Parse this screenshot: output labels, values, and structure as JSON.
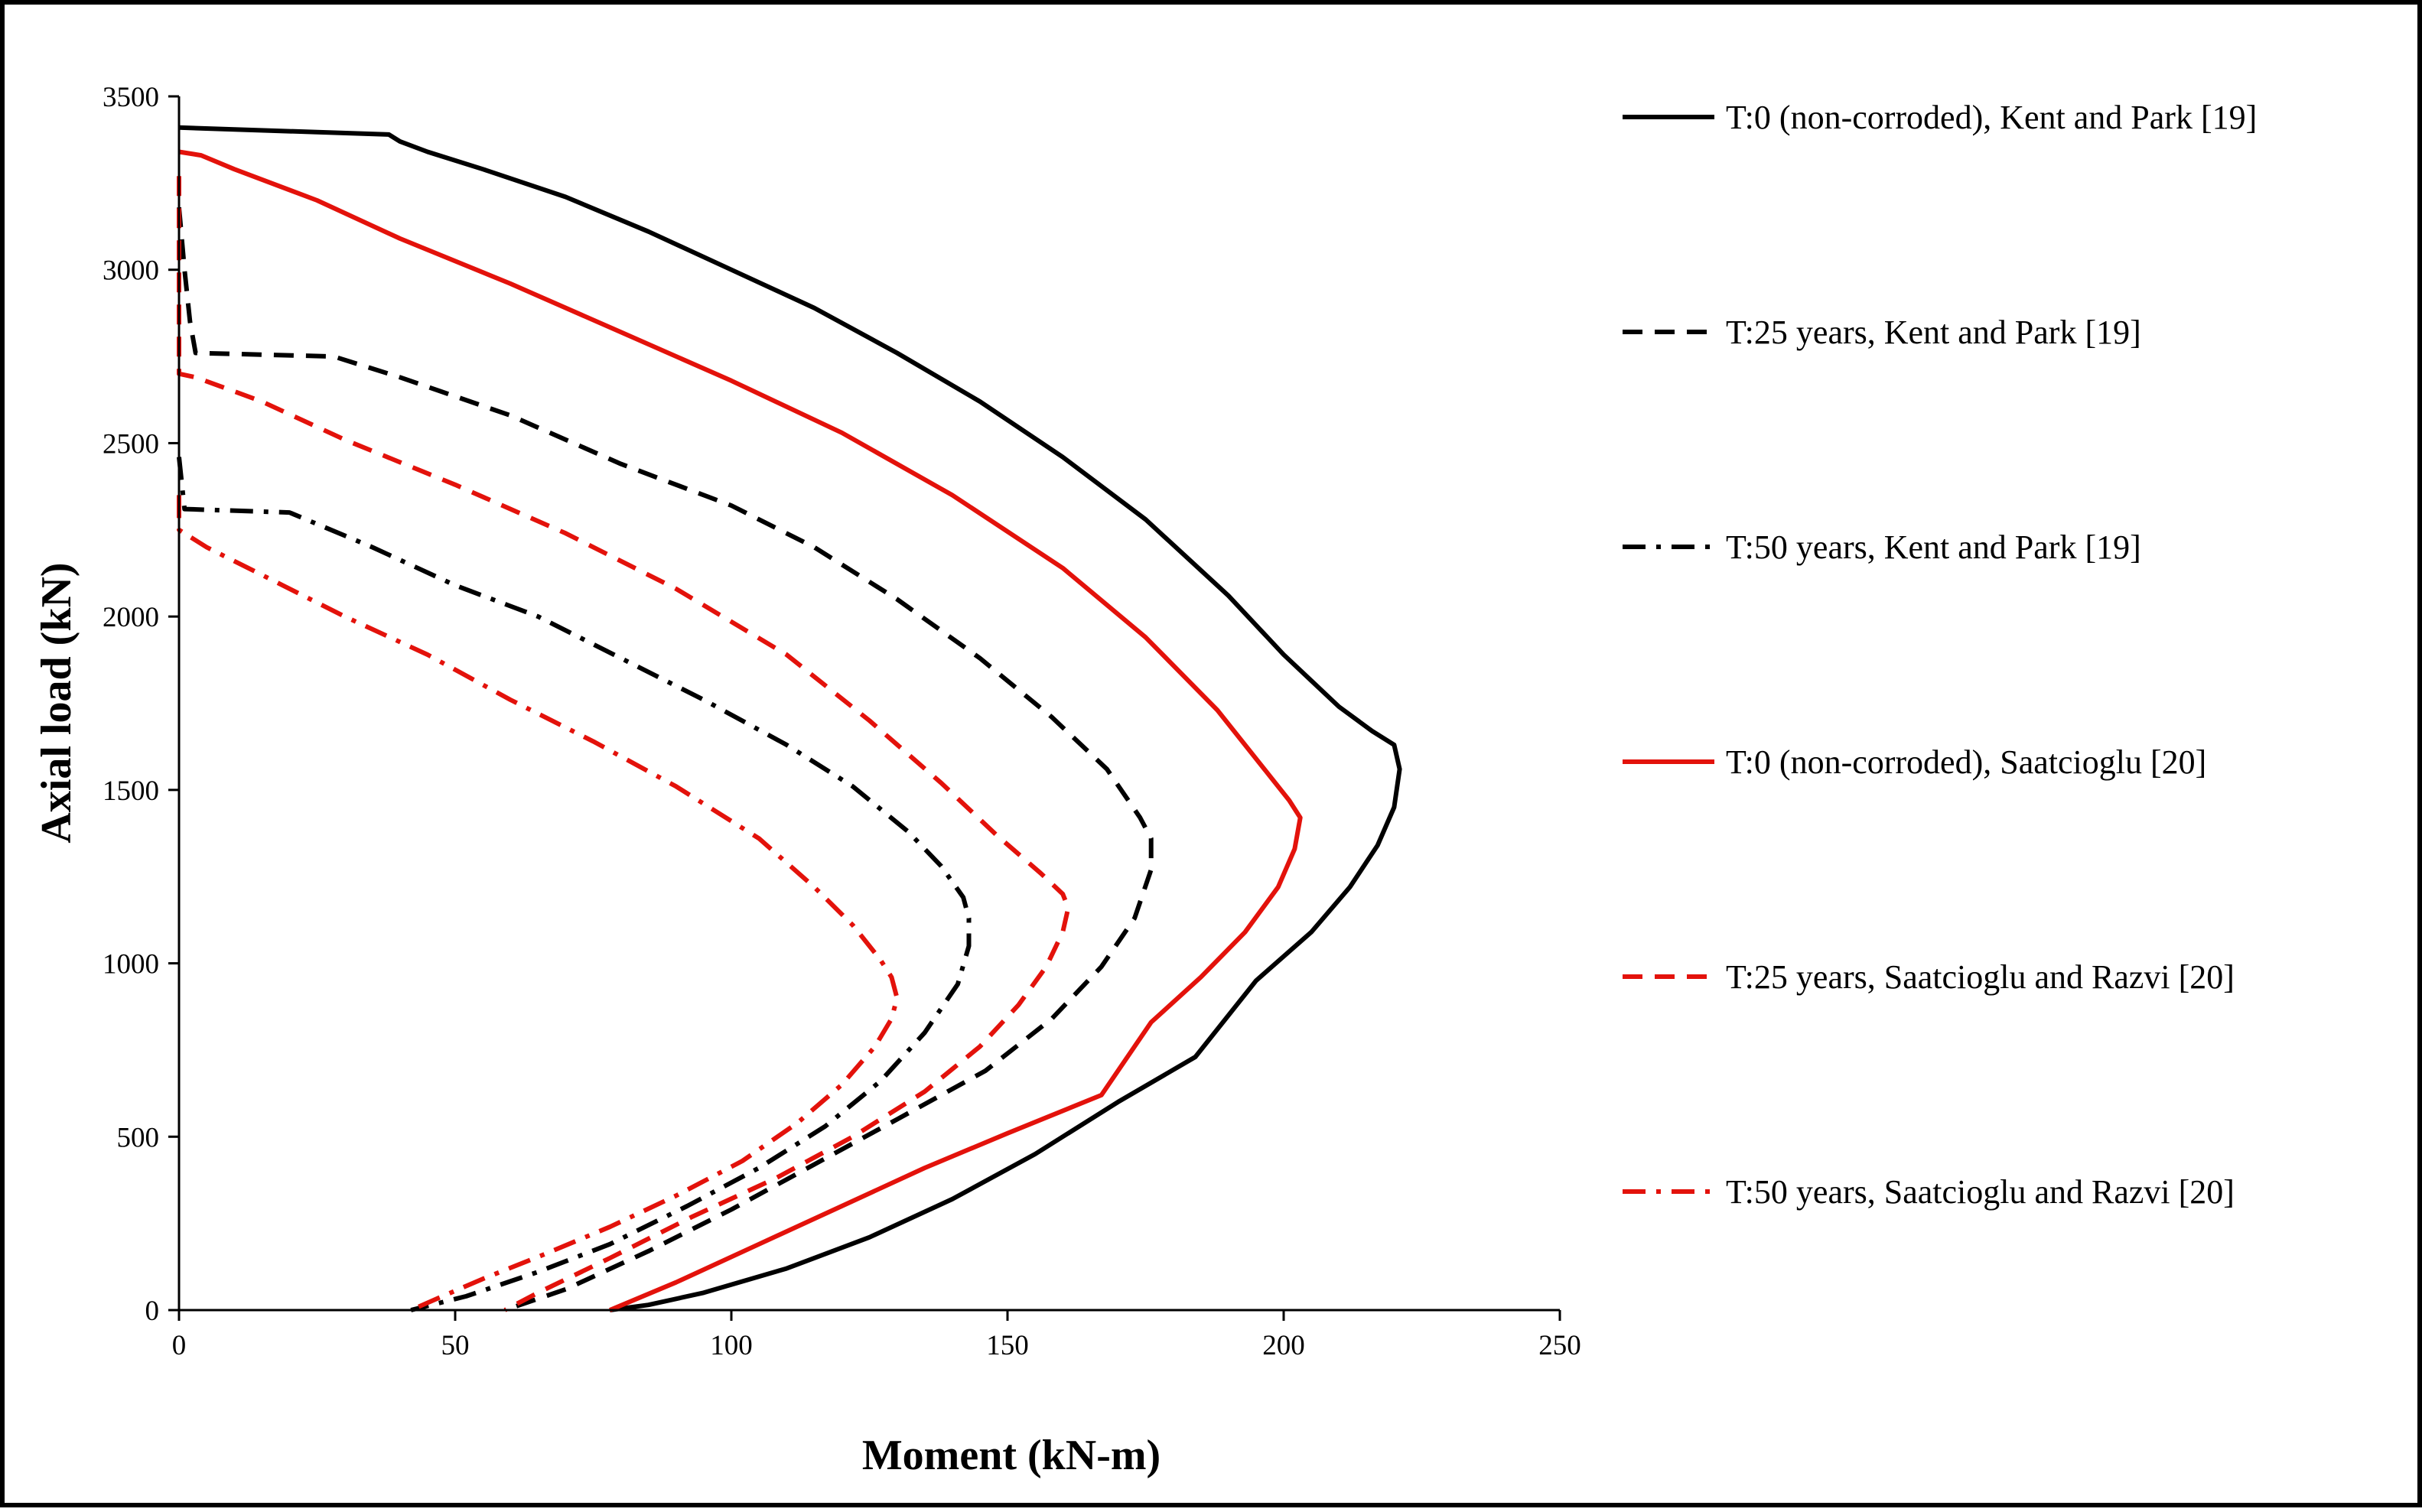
{
  "chart_data": {
    "type": "line",
    "xlabel": "Moment (kN-m)",
    "ylabel": "Axial load (kN)",
    "xlim": [
      0,
      250
    ],
    "ylim": [
      0,
      3500
    ],
    "xticks": [
      0,
      50,
      100,
      150,
      200,
      250
    ],
    "yticks": [
      0,
      500,
      1000,
      1500,
      2000,
      2500,
      3000,
      3500
    ],
    "grid": false,
    "legend_position": "right",
    "series": [
      {
        "name": "T:0 (non-corroded), Kent and Park [19]",
        "color": "#000000",
        "dash": "solid",
        "x": [
          0,
          38,
          40,
          45,
          55,
          70,
          85,
          100,
          115,
          130,
          145,
          160,
          175,
          190,
          200,
          210,
          216,
          220,
          221,
          220,
          217,
          212,
          205,
          195,
          184,
          170,
          155,
          140,
          125,
          110,
          95,
          85,
          78
        ],
        "y": [
          3410,
          3390,
          3370,
          3340,
          3290,
          3210,
          3110,
          3000,
          2890,
          2760,
          2620,
          2460,
          2280,
          2060,
          1890,
          1740,
          1670,
          1630,
          1560,
          1450,
          1340,
          1220,
          1090,
          950,
          730,
          600,
          450,
          320,
          210,
          120,
          50,
          15,
          0
        ]
      },
      {
        "name": "T:25 years, Kent and Park [19]",
        "color": "#000000",
        "dash": "dash",
        "x": [
          0,
          1,
          2,
          3,
          28,
          40,
          60,
          80,
          100,
          115,
          130,
          145,
          158,
          168,
          174,
          176,
          176,
          173,
          167,
          158,
          146,
          130,
          115,
          100,
          85,
          70,
          59
        ],
        "y": [
          3180,
          3000,
          2850,
          2760,
          2750,
          2690,
          2580,
          2440,
          2320,
          2200,
          2050,
          1880,
          1710,
          1560,
          1420,
          1360,
          1270,
          1130,
          990,
          840,
          690,
          550,
          420,
          290,
          170,
          60,
          0
        ]
      },
      {
        "name": "T:50 years, Kent and Park [19]",
        "color": "#000000",
        "dash": "dashdot",
        "x": [
          0,
          1,
          20,
          35,
          50,
          65,
          80,
          95,
          110,
          122,
          132,
          138,
          142,
          143,
          143,
          141,
          135,
          127,
          117,
          105,
          92,
          78,
          65,
          52,
          42
        ],
        "y": [
          2460,
          2310,
          2300,
          2200,
          2090,
          2000,
          1880,
          1760,
          1630,
          1510,
          1380,
          1280,
          1190,
          1130,
          1050,
          940,
          800,
          660,
          530,
          410,
          300,
          190,
          110,
          40,
          0
        ]
      },
      {
        "name": "T:0 (non-corroded), Saatcioglu [20]",
        "color": "#e3120b",
        "dash": "solid",
        "x": [
          0,
          4,
          10,
          25,
          40,
          60,
          80,
          100,
          120,
          140,
          160,
          175,
          188,
          196,
          201,
          203,
          202,
          199,
          193,
          185,
          176,
          167,
          150,
          135,
          120,
          105,
          90,
          78
        ],
        "y": [
          3340,
          3330,
          3290,
          3200,
          3090,
          2960,
          2820,
          2680,
          2530,
          2350,
          2140,
          1940,
          1730,
          1570,
          1470,
          1420,
          1330,
          1220,
          1090,
          960,
          830,
          620,
          510,
          410,
          300,
          190,
          80,
          0
        ]
      },
      {
        "name": "T:25 years, Saatcioglu and Razvi [20]",
        "color": "#e3120b",
        "dash": "dash",
        "x": [
          0,
          0,
          3,
          15,
          30,
          50,
          70,
          90,
          110,
          125,
          138,
          148,
          156,
          160,
          161,
          160,
          157,
          152,
          145,
          135,
          122,
          108,
          93,
          78,
          65,
          59
        ],
        "y": [
          3270,
          2700,
          2690,
          2620,
          2510,
          2380,
          2240,
          2080,
          1890,
          1700,
          1520,
          1370,
          1260,
          1200,
          1160,
          1090,
          990,
          880,
          760,
          630,
          500,
          380,
          270,
          150,
          50,
          0
        ]
      },
      {
        "name": "T:50 years, Saatcioglu and Razvi [20]",
        "color": "#e3120b",
        "dash": "dashdot",
        "x": [
          0,
          0,
          5,
          15,
          30,
          45,
          60,
          75,
          90,
          105,
          115,
          122,
          127,
          129,
          130,
          129,
          126,
          120,
          112,
          102,
          90,
          78,
          66,
          55,
          47,
          42
        ],
        "y": [
          2350,
          2250,
          2200,
          2120,
          2000,
          1890,
          1760,
          1640,
          1510,
          1360,
          1220,
          1110,
          1010,
          960,
          900,
          840,
          760,
          650,
          540,
          430,
          330,
          240,
          160,
          90,
          35,
          0
        ]
      }
    ]
  }
}
